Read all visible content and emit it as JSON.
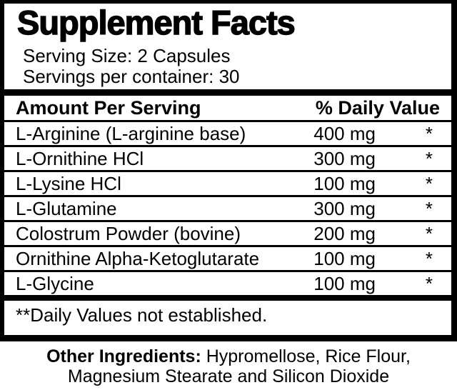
{
  "panel": {
    "title": "Supplement Facts",
    "serving_size": "Serving Size: 2 Capsules",
    "servings_per_container": "Servings per container: 30",
    "columns": {
      "amount_header": "Amount Per Serving",
      "daily_value_header": "% Daily Value"
    },
    "rows": [
      {
        "name": "L-Arginine (L-arginine base)",
        "amount": "400 mg",
        "dv": "*"
      },
      {
        "name": "L-Ornithine HCl",
        "amount": "300 mg",
        "dv": "*"
      },
      {
        "name": "L-Lysine HCl",
        "amount": "100 mg",
        "dv": "*"
      },
      {
        "name": "L-Glutamine",
        "amount": "300 mg",
        "dv": "*"
      },
      {
        "name": "Colostrum Powder (bovine)",
        "amount": "200 mg",
        "dv": "*"
      },
      {
        "name": "Ornithine Alpha-Ketoglutarate",
        "amount": "100 mg",
        "dv": "*"
      },
      {
        "name": "L-Glycine",
        "amount": "100 mg",
        "dv": "*"
      }
    ],
    "footnote": "**Daily Values not established."
  },
  "other_ingredients": {
    "label": "Other Ingredients:",
    "line1_rest": " Hypromellose, Rice Flour,",
    "line2": "Magnesium Stearate and Silicon Dioxide"
  },
  "colors": {
    "text": "#000000",
    "background": "#ffffff"
  }
}
